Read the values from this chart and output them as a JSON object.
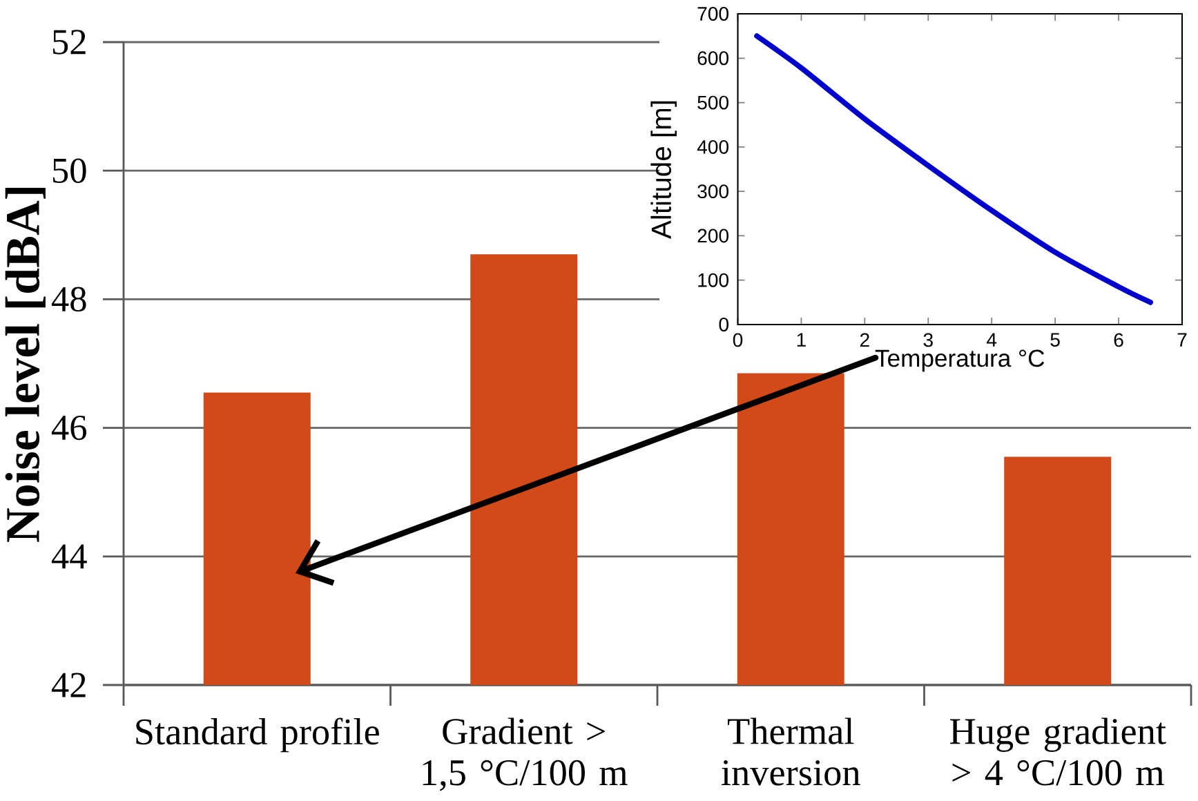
{
  "chart_data": [
    {
      "type": "bar",
      "ylabel": "Noise level [dBA]",
      "categories": [
        "Standard profile",
        "Gradient > 1,5 °C/100 m",
        "Thermal inversion",
        "Huge gradient > 4 °C/100 m"
      ],
      "values": [
        46.55,
        48.7,
        46.85,
        45.55
      ],
      "color": "#d14a18",
      "ylim": [
        42,
        52
      ],
      "yticks": [
        42,
        44,
        46,
        48,
        50,
        52
      ],
      "grid": "y"
    },
    {
      "type": "line",
      "xlabel": "Temperatura °C",
      "ylabel": "Altitude [m]",
      "x": [
        0.3,
        1,
        2,
        3,
        4,
        5,
        6,
        6.5
      ],
      "values": [
        650,
        578,
        463,
        358,
        257,
        163,
        85,
        50
      ],
      "color": "#0000cc",
      "xlim": [
        0,
        7
      ],
      "xticks": [
        0,
        1,
        2,
        3,
        4,
        5,
        6,
        7
      ],
      "ylim": [
        0,
        700
      ],
      "yticks": [
        0,
        100,
        200,
        300,
        400,
        500,
        600,
        700
      ]
    }
  ]
}
